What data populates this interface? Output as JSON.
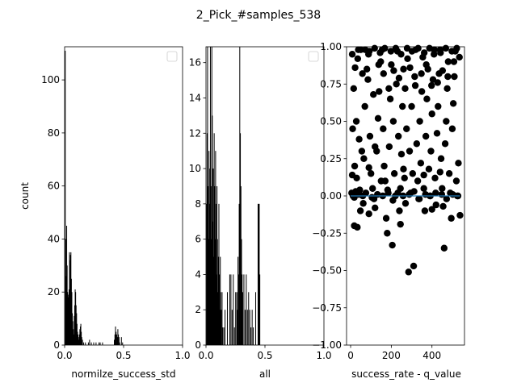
{
  "figure": {
    "title": "2_Pick_#samples_538"
  },
  "colors": {
    "bars": "#000000",
    "points": "#000000",
    "fit_line": "#1f77b4",
    "axes": "#000000",
    "background": "#ffffff"
  },
  "chart_data": [
    {
      "id": "hist1",
      "type": "bar",
      "xlabel": "normilze_success_std",
      "ylabel": "count",
      "xlim": [
        0,
        1
      ],
      "ylim": [
        0,
        112.5
      ],
      "xticks": [
        "0.0",
        "0.5",
        "1.0"
      ],
      "yticks": [
        "0",
        "20",
        "40",
        "60",
        "80",
        "100"
      ],
      "ytick_values": [
        0,
        20,
        40,
        60,
        80,
        100
      ],
      "legend": "empty box, top-right",
      "bins": [
        {
          "x": 0.004,
          "count": 111
        },
        {
          "x": 0.008,
          "count": 40
        },
        {
          "x": 0.012,
          "count": 26
        },
        {
          "x": 0.016,
          "count": 45
        },
        {
          "x": 0.02,
          "count": 30
        },
        {
          "x": 0.024,
          "count": 20
        },
        {
          "x": 0.028,
          "count": 19
        },
        {
          "x": 0.032,
          "count": 18
        },
        {
          "x": 0.036,
          "count": 21
        },
        {
          "x": 0.04,
          "count": 35
        },
        {
          "x": 0.044,
          "count": 32
        },
        {
          "x": 0.048,
          "count": 34
        },
        {
          "x": 0.052,
          "count": 35
        },
        {
          "x": 0.056,
          "count": 25
        },
        {
          "x": 0.06,
          "count": 20
        },
        {
          "x": 0.064,
          "count": 12
        },
        {
          "x": 0.068,
          "count": 9
        },
        {
          "x": 0.072,
          "count": 6
        },
        {
          "x": 0.076,
          "count": 4
        },
        {
          "x": 0.08,
          "count": 11
        },
        {
          "x": 0.084,
          "count": 15
        },
        {
          "x": 0.088,
          "count": 21
        },
        {
          "x": 0.092,
          "count": 20
        },
        {
          "x": 0.096,
          "count": 15
        },
        {
          "x": 0.1,
          "count": 12
        },
        {
          "x": 0.104,
          "count": 8
        },
        {
          "x": 0.108,
          "count": 5
        },
        {
          "x": 0.112,
          "count": 4
        },
        {
          "x": 0.116,
          "count": 3
        },
        {
          "x": 0.12,
          "count": 2
        },
        {
          "x": 0.124,
          "count": 4
        },
        {
          "x": 0.128,
          "count": 6
        },
        {
          "x": 0.132,
          "count": 7
        },
        {
          "x": 0.136,
          "count": 8
        },
        {
          "x": 0.14,
          "count": 5
        },
        {
          "x": 0.144,
          "count": 3
        },
        {
          "x": 0.15,
          "count": 2
        },
        {
          "x": 0.16,
          "count": 1
        },
        {
          "x": 0.175,
          "count": 1
        },
        {
          "x": 0.2,
          "count": 1
        },
        {
          "x": 0.21,
          "count": 2
        },
        {
          "x": 0.225,
          "count": 1
        },
        {
          "x": 0.245,
          "count": 1
        },
        {
          "x": 0.265,
          "count": 1
        },
        {
          "x": 0.29,
          "count": 1
        },
        {
          "x": 0.3,
          "count": 1
        },
        {
          "x": 0.32,
          "count": 1
        },
        {
          "x": 0.42,
          "count": 2
        },
        {
          "x": 0.425,
          "count": 4
        },
        {
          "x": 0.43,
          "count": 7
        },
        {
          "x": 0.435,
          "count": 5
        },
        {
          "x": 0.44,
          "count": 4
        },
        {
          "x": 0.445,
          "count": 3
        },
        {
          "x": 0.45,
          "count": 6
        },
        {
          "x": 0.455,
          "count": 4
        },
        {
          "x": 0.46,
          "count": 3
        },
        {
          "x": 0.465,
          "count": 1
        },
        {
          "x": 0.48,
          "count": 3
        },
        {
          "x": 0.49,
          "count": 1
        }
      ]
    },
    {
      "id": "hist2",
      "type": "bar",
      "xlabel": "all",
      "xlim": [
        0,
        1
      ],
      "ylim": [
        0,
        16.9
      ],
      "xticks": [
        "0.0",
        "0.5",
        "1.0"
      ],
      "yticks": [
        "0",
        "2",
        "4",
        "6",
        "8",
        "10",
        "12",
        "14",
        "16"
      ],
      "ytick_values": [
        0,
        2,
        4,
        6,
        8,
        10,
        12,
        14,
        16
      ],
      "legend": "empty box, top-right",
      "bins": [
        {
          "x": 0.004,
          "count": 8
        },
        {
          "x": 0.008,
          "count": 12
        },
        {
          "x": 0.012,
          "count": 17
        },
        {
          "x": 0.016,
          "count": 9
        },
        {
          "x": 0.02,
          "count": 6
        },
        {
          "x": 0.024,
          "count": 11
        },
        {
          "x": 0.028,
          "count": 8
        },
        {
          "x": 0.032,
          "count": 10
        },
        {
          "x": 0.036,
          "count": 17
        },
        {
          "x": 0.04,
          "count": 9
        },
        {
          "x": 0.044,
          "count": 6
        },
        {
          "x": 0.048,
          "count": 17
        },
        {
          "x": 0.052,
          "count": 13
        },
        {
          "x": 0.056,
          "count": 7
        },
        {
          "x": 0.06,
          "count": 10
        },
        {
          "x": 0.064,
          "count": 5
        },
        {
          "x": 0.068,
          "count": 12
        },
        {
          "x": 0.072,
          "count": 9
        },
        {
          "x": 0.076,
          "count": 6
        },
        {
          "x": 0.08,
          "count": 11
        },
        {
          "x": 0.084,
          "count": 8
        },
        {
          "x": 0.088,
          "count": 4
        },
        {
          "x": 0.092,
          "count": 9
        },
        {
          "x": 0.096,
          "count": 6
        },
        {
          "x": 0.1,
          "count": 3
        },
        {
          "x": 0.104,
          "count": 5
        },
        {
          "x": 0.108,
          "count": 8
        },
        {
          "x": 0.112,
          "count": 4
        },
        {
          "x": 0.116,
          "count": 2
        },
        {
          "x": 0.12,
          "count": 5
        },
        {
          "x": 0.124,
          "count": 3
        },
        {
          "x": 0.128,
          "count": 2
        },
        {
          "x": 0.135,
          "count": 3
        },
        {
          "x": 0.14,
          "count": 1
        },
        {
          "x": 0.15,
          "count": 1
        },
        {
          "x": 0.16,
          "count": 2
        },
        {
          "x": 0.18,
          "count": 3
        },
        {
          "x": 0.2,
          "count": 4
        },
        {
          "x": 0.21,
          "count": 4
        },
        {
          "x": 0.22,
          "count": 2
        },
        {
          "x": 0.23,
          "count": 4
        },
        {
          "x": 0.24,
          "count": 1
        },
        {
          "x": 0.25,
          "count": 3
        },
        {
          "x": 0.26,
          "count": 3
        },
        {
          "x": 0.265,
          "count": 2
        },
        {
          "x": 0.27,
          "count": 5
        },
        {
          "x": 0.275,
          "count": 4
        },
        {
          "x": 0.28,
          "count": 8
        },
        {
          "x": 0.285,
          "count": 17
        },
        {
          "x": 0.29,
          "count": 12
        },
        {
          "x": 0.295,
          "count": 9
        },
        {
          "x": 0.3,
          "count": 6
        },
        {
          "x": 0.305,
          "count": 4
        },
        {
          "x": 0.31,
          "count": 3
        },
        {
          "x": 0.32,
          "count": 4
        },
        {
          "x": 0.33,
          "count": 2
        },
        {
          "x": 0.34,
          "count": 4
        },
        {
          "x": 0.35,
          "count": 2
        },
        {
          "x": 0.36,
          "count": 3
        },
        {
          "x": 0.37,
          "count": 2
        },
        {
          "x": 0.38,
          "count": 1
        },
        {
          "x": 0.39,
          "count": 2
        },
        {
          "x": 0.4,
          "count": 1
        },
        {
          "x": 0.42,
          "count": 3
        },
        {
          "x": 0.44,
          "count": 8
        },
        {
          "x": 0.445,
          "count": 8
        },
        {
          "x": 0.45,
          "count": 8
        },
        {
          "x": 0.455,
          "count": 4
        }
      ]
    },
    {
      "id": "scatter",
      "type": "scatter",
      "xlabel": "success_rate - q_value",
      "xlim": [
        -20,
        560
      ],
      "ylim": [
        -1,
        1
      ],
      "xticks": [
        "0",
        "200",
        "400"
      ],
      "xtick_values": [
        0,
        200,
        400
      ],
      "yticks": [
        "−1.00",
        "−0.75",
        "−0.50",
        "−0.25",
        "0.00",
        "0.25",
        "0.50",
        "0.75",
        "1.00"
      ],
      "ytick_values": [
        -1,
        -0.75,
        -0.5,
        -0.25,
        0,
        0.25,
        0.5,
        0.75,
        1
      ],
      "legend": "none",
      "fit_line": {
        "x": [
          0,
          538
        ],
        "y": [
          0.0,
          0.0
        ]
      },
      "points": [
        [
          5,
          0.02
        ],
        [
          12,
          0.0
        ],
        [
          18,
          -0.01
        ],
        [
          25,
          0.03
        ],
        [
          8,
          0.14
        ],
        [
          30,
          0.12
        ],
        [
          45,
          0.04
        ],
        [
          60,
          0.0
        ],
        [
          15,
          0.72
        ],
        [
          22,
          0.86
        ],
        [
          35,
          0.92
        ],
        [
          50,
          0.98
        ],
        [
          10,
          0.45
        ],
        [
          28,
          0.5
        ],
        [
          42,
          0.38
        ],
        [
          55,
          0.3
        ],
        [
          65,
          0.25
        ],
        [
          20,
          0.2
        ],
        [
          33,
          -0.21
        ],
        [
          48,
          -0.1
        ],
        [
          62,
          -0.05
        ],
        [
          70,
          0.6
        ],
        [
          80,
          0.85
        ],
        [
          88,
          0.95
        ],
        [
          95,
          0.4
        ],
        [
          100,
          0.15
        ],
        [
          108,
          0.05
        ],
        [
          115,
          -0.02
        ],
        [
          120,
          -0.08
        ],
        [
          128,
          0.3
        ],
        [
          135,
          0.52
        ],
        [
          140,
          0.7
        ],
        [
          148,
          0.9
        ],
        [
          155,
          0.98
        ],
        [
          160,
          0.45
        ],
        [
          165,
          0.2
        ],
        [
          170,
          0.1
        ],
        [
          175,
          -0.15
        ],
        [
          180,
          -0.25
        ],
        [
          185,
          0.02
        ],
        [
          190,
          0.33
        ],
        [
          195,
          0.65
        ],
        [
          200,
          0.88
        ],
        [
          205,
          -0.33
        ],
        [
          210,
          0.5
        ],
        [
          215,
          0.15
        ],
        [
          220,
          0.0
        ],
        [
          225,
          0.75
        ],
        [
          230,
          0.97
        ],
        [
          235,
          0.4
        ],
        [
          240,
          -0.1
        ],
        [
          245,
          0.05
        ],
        [
          250,
          0.28
        ],
        [
          255,
          0.6
        ],
        [
          260,
          0.85
        ],
        [
          265,
          0.12
        ],
        [
          270,
          -0.05
        ],
        [
          275,
          0.45
        ],
        [
          280,
          0.92
        ],
        [
          285,
          -0.51
        ],
        [
          290,
          0.3
        ],
        [
          295,
          0.02
        ],
        [
          300,
          0.6
        ],
        [
          305,
          0.15
        ],
        [
          310,
          -0.47
        ],
        [
          315,
          0.8
        ],
        [
          320,
          0.98
        ],
        [
          325,
          0.35
        ],
        [
          330,
          0.1
        ],
        [
          335,
          -0.02
        ],
        [
          340,
          0.5
        ],
        [
          345,
          0.22
        ],
        [
          350,
          0.7
        ],
        [
          355,
          0.93
        ],
        [
          360,
          0.05
        ],
        [
          365,
          -0.1
        ],
        [
          370,
          0.4
        ],
        [
          375,
          0.65
        ],
        [
          380,
          0.85
        ],
        [
          385,
          0.18
        ],
        [
          390,
          0.0
        ],
        [
          395,
          0.3
        ],
        [
          400,
          0.55
        ],
        [
          405,
          0.78
        ],
        [
          410,
          0.95
        ],
        [
          415,
          0.12
        ],
        [
          420,
          -0.06
        ],
        [
          425,
          0.42
        ],
        [
          430,
          0.6
        ],
        [
          435,
          0.82
        ],
        [
          440,
          0.98
        ],
        [
          445,
          0.25
        ],
        [
          450,
          0.05
        ],
        [
          455,
          -0.07
        ],
        [
          460,
          -0.35
        ],
        [
          465,
          0.35
        ],
        [
          470,
          0.5
        ],
        [
          475,
          0.72
        ],
        [
          480,
          0.9
        ],
        [
          485,
          0.15
        ],
        [
          490,
          0.02
        ],
        [
          495,
          -0.15
        ],
        [
          500,
          0.45
        ],
        [
          505,
          0.62
        ],
        [
          510,
          0.8
        ],
        [
          515,
          0.97
        ],
        [
          520,
          0.1
        ],
        [
          525,
          0.0
        ],
        [
          530,
          0.22
        ],
        [
          535,
          0.93
        ],
        [
          538,
          -0.13
        ],
        [
          8,
          0.95
        ],
        [
          38,
          0.98
        ],
        [
          72,
          0.98
        ],
        [
          92,
          0.97
        ],
        [
          118,
          0.99
        ],
        [
          145,
          0.96
        ],
        [
          168,
          0.99
        ],
        [
          198,
          0.97
        ],
        [
          222,
          0.99
        ],
        [
          248,
          0.95
        ],
        [
          278,
          0.99
        ],
        [
          302,
          0.97
        ],
        [
          332,
          0.99
        ],
        [
          362,
          0.96
        ],
        [
          388,
          0.99
        ],
        [
          412,
          0.98
        ],
        [
          442,
          0.96
        ],
        [
          468,
          0.99
        ],
        [
          498,
          0.97
        ],
        [
          522,
          0.99
        ],
        [
          58,
          0.82
        ],
        [
          85,
          0.78
        ],
        [
          112,
          0.68
        ],
        [
          138,
          0.88
        ],
        [
          162,
          0.82
        ],
        [
          188,
          0.72
        ],
        [
          212,
          0.84
        ],
        [
          238,
          0.79
        ],
        [
          268,
          0.72
        ],
        [
          292,
          0.86
        ],
        [
          318,
          0.74
        ],
        [
          348,
          0.82
        ],
        [
          372,
          0.88
        ],
        [
          398,
          0.74
        ],
        [
          428,
          0.76
        ],
        [
          452,
          0.84
        ],
        [
          478,
          0.8
        ],
        [
          508,
          0.9
        ],
        [
          40,
          0.01
        ],
        [
          75,
          0.02
        ],
        [
          105,
          -0.01
        ],
        [
          132,
          0.01
        ],
        [
          158,
          0.0
        ],
        [
          182,
          0.04
        ],
        [
          208,
          -0.03
        ],
        [
          232,
          0.02
        ],
        [
          258,
          0.0
        ],
        [
          288,
          0.01
        ],
        [
          312,
          0.03
        ],
        [
          338,
          -0.02
        ],
        [
          368,
          0.01
        ],
        [
          392,
          0.0
        ],
        [
          418,
          0.02
        ],
        [
          448,
          0.01
        ],
        [
          472,
          -0.02
        ],
        [
          502,
          0.01
        ],
        [
          528,
          0.0
        ],
        [
          90,
          0.19
        ],
        [
          150,
          0.1
        ],
        [
          260,
          0.18
        ],
        [
          360,
          0.14
        ],
        [
          440,
          0.16
        ],
        [
          90,
          -0.12
        ],
        [
          245,
          -0.19
        ],
        [
          400,
          -0.09
        ],
        [
          18,
          -0.2
        ],
        [
          120,
          0.33
        ]
      ]
    }
  ]
}
